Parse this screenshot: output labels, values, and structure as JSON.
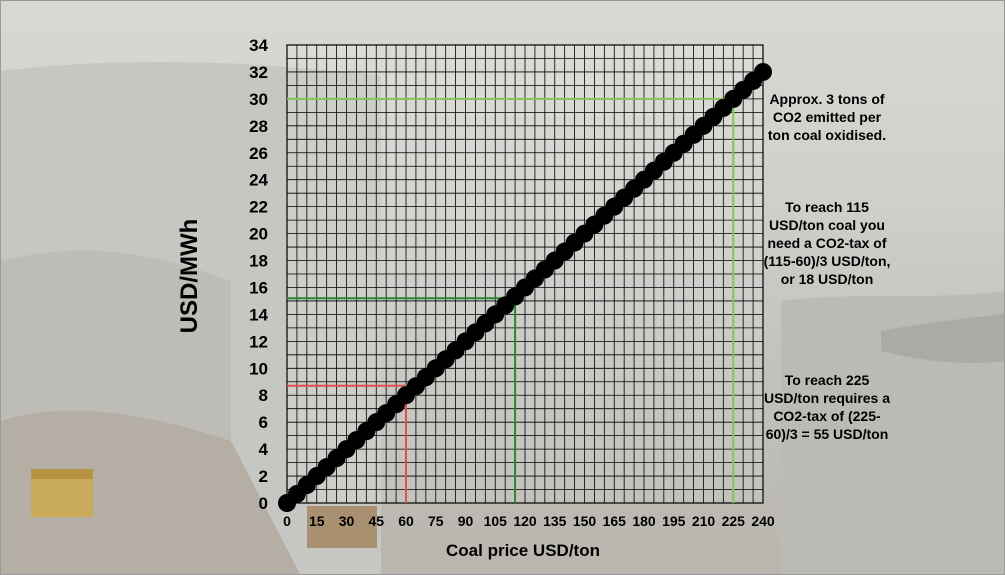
{
  "chart_data": {
    "type": "line",
    "title": "",
    "xlabel": "Coal price USD/ton",
    "ylabel": "USD/MWh",
    "xlim": [
      0,
      240
    ],
    "ylim": [
      0,
      34
    ],
    "x_ticks": [
      0,
      15,
      30,
      45,
      60,
      75,
      90,
      105,
      120,
      135,
      150,
      165,
      180,
      195,
      210,
      225,
      240
    ],
    "y_ticks": [
      0,
      2,
      4,
      6,
      8,
      10,
      12,
      14,
      16,
      18,
      20,
      22,
      24,
      26,
      28,
      30,
      32,
      34
    ],
    "grid": true,
    "series": [
      {
        "marker": "circle",
        "color": "#000000",
        "x": [
          0,
          5,
          10,
          15,
          20,
          25,
          30,
          35,
          40,
          45,
          50,
          55,
          60,
          65,
          70,
          75,
          80,
          85,
          90,
          95,
          100,
          105,
          110,
          115,
          120,
          125,
          130,
          135,
          140,
          145,
          150,
          155,
          160,
          165,
          170,
          175,
          180,
          185,
          190,
          195,
          200,
          205,
          210,
          215,
          220,
          225,
          230,
          235,
          240
        ],
        "y": [
          0,
          0.67,
          1.33,
          2.0,
          2.67,
          3.33,
          4.0,
          4.67,
          5.33,
          6.0,
          6.67,
          7.33,
          8.0,
          8.67,
          9.33,
          10.0,
          10.67,
          11.33,
          12.0,
          12.67,
          13.33,
          14.0,
          14.67,
          15.33,
          16.0,
          16.67,
          17.33,
          18.0,
          18.67,
          19.33,
          20.0,
          20.67,
          21.33,
          22.0,
          22.67,
          23.33,
          24.0,
          24.67,
          25.33,
          26.0,
          26.67,
          27.33,
          28.0,
          28.67,
          29.33,
          30.0,
          30.67,
          31.33,
          32.0
        ]
      }
    ],
    "reference_lines": [
      {
        "x": 60,
        "y": 8.7,
        "color": "#e05050"
      },
      {
        "x": 115,
        "y": 15.2,
        "color": "#2a8a2a"
      },
      {
        "x": 225,
        "y": 30,
        "color": "#7ec850"
      }
    ]
  },
  "notes": {
    "note1": "Approx. 3 tons of CO2 emitted per ton coal oxidised.",
    "note2": "To reach 115 USD/ton coal you need a CO2-tax of (115-60)/3 USD/ton, or 18 USD/ton",
    "note3": "To reach 225 USD/ton requires a CO2-tax of (225-60)/3 = 55 USD/ton"
  }
}
